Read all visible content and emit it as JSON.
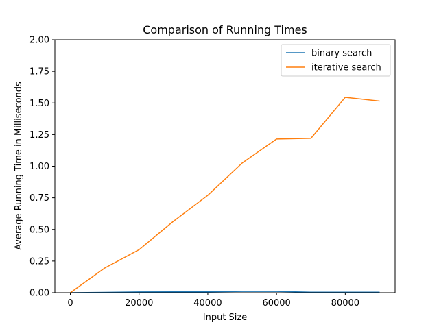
{
  "chart_data": {
    "type": "line",
    "title": "Comparison of Running Times",
    "xlabel": "Input Size",
    "ylabel": "Average Running Time in Milliseconds",
    "xlim": [
      -4500,
      94500
    ],
    "ylim": [
      0,
      2.0
    ],
    "xticks": [
      0,
      20000,
      40000,
      60000,
      80000
    ],
    "xtick_labels": [
      "0",
      "20000",
      "40000",
      "60000",
      "80000"
    ],
    "yticks": [
      0,
      0.25,
      0.5,
      0.75,
      1.0,
      1.25,
      1.5,
      1.75,
      2.0
    ],
    "ytick_labels": [
      "0.00",
      "0.25",
      "0.50",
      "0.75",
      "1.00",
      "1.25",
      "1.50",
      "1.75",
      "2.00"
    ],
    "grid": false,
    "legend_position": "top-right",
    "x": [
      0,
      10000,
      20000,
      30000,
      40000,
      50000,
      60000,
      70000,
      80000,
      90000
    ],
    "series": [
      {
        "name": "binary search",
        "color": "#1f77b4",
        "values": [
          0.0,
          0.003,
          0.006,
          0.007,
          0.007,
          0.01,
          0.01,
          0.004,
          0.004,
          0.004
        ]
      },
      {
        "name": "iterative search",
        "color": "#ff7f0e",
        "values": [
          0.0,
          0.195,
          0.34,
          0.565,
          0.77,
          1.025,
          1.215,
          1.22,
          1.545,
          1.515
        ]
      }
    ]
  }
}
